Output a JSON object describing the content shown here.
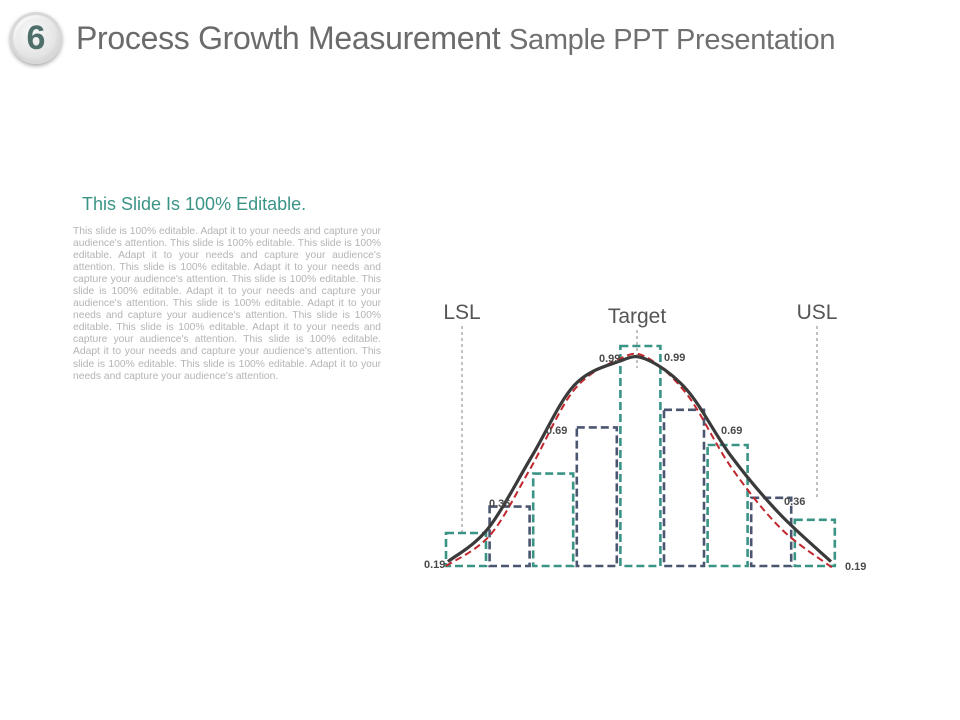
{
  "header": {
    "badge_number": "6",
    "title_main": "Process Growth Measurement",
    "title_sub": "Sample PPT Presentation"
  },
  "content": {
    "subtitle": "This Slide Is 100% Editable.",
    "body": "This slide is 100% editable. Adapt it to your needs and capture your audience's attention. This slide is 100% editable. This slide is 100% editable. Adapt it to your needs and capture your audience's attention. This slide is 100% editable. Adapt it to your needs and capture your audience's attention. This slide is 100% editable. This slide is 100% editable. Adapt it to your needs and capture your audience's attention. This slide is 100% editable. Adapt it to your needs and capture your audience's attention. This slide is 100% editable. This slide is 100% editable. Adapt it to your needs and capture your audience's attention. This slide is 100% editable. Adapt it to your needs and capture your audience's attention. This slide is 100% editable. This slide is 100% editable. Adapt it to your needs and capture your audience's attention."
  },
  "colors": {
    "teal": "#3a9486",
    "slate": "#4a5670",
    "curve": "#3a3a3a",
    "fit": "#c0282d",
    "limit_line": "#9a9a9a"
  },
  "chart_data": {
    "type": "bar",
    "title": "",
    "bars": [
      0.15,
      0.27,
      0.42,
      0.63,
      1.0,
      0.71,
      0.55,
      0.31,
      0.21
    ],
    "bar_styles": [
      "teal",
      "slate",
      "teal",
      "slate",
      "teal",
      "slate",
      "teal",
      "slate",
      "teal"
    ],
    "curve": [
      0.19,
      0.36,
      0.69,
      0.99,
      0.99,
      0.69,
      0.36,
      0.19
    ],
    "data_labels": [
      "0.19",
      "0.36",
      "0.69",
      "0.99",
      "0.99",
      "0.69",
      "0.36",
      "0.19"
    ],
    "limits": [
      {
        "label": "LSL"
      },
      {
        "label": "Target"
      },
      {
        "label": "USL"
      }
    ],
    "grid": false,
    "legend": "none"
  }
}
